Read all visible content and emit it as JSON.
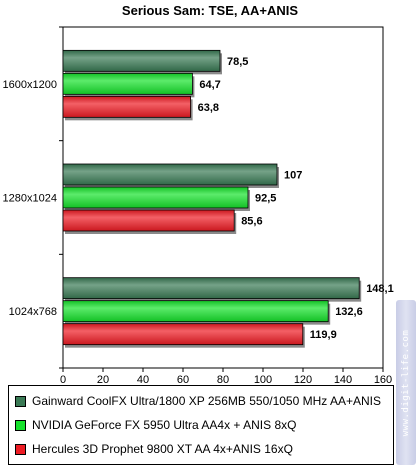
{
  "chart_data": {
    "type": "bar",
    "orientation": "horizontal",
    "title": "Serious Sam: TSE, AA+ANIS",
    "categories": [
      "1600x1200",
      "1280x1024",
      "1024x768"
    ],
    "xlim": [
      0,
      160
    ],
    "xticks": [
      "0",
      "20",
      "40",
      "60",
      "80",
      "100",
      "120",
      "140",
      "160"
    ],
    "legend_position": "bottom",
    "series": [
      {
        "name": "Gainward CoolFX Ultra/1800 XP 256MB 550/1050 MHz AA+ANIS",
        "color": "#3a7a55",
        "values": [
          78.5,
          107,
          148.1
        ],
        "labels": [
          "78,5",
          "107",
          "148,1"
        ]
      },
      {
        "name": "NVIDIA GeForce FX 5950 Ultra AA4x + ANIS 8xQ",
        "color": "#16e22c",
        "values": [
          64.7,
          92.5,
          132.6
        ],
        "labels": [
          "64,7",
          "92,5",
          "132,6"
        ]
      },
      {
        "name": "Hercules 3D Prophet 9800 XT AA 4x+ANIS 16xQ",
        "color": "#ee1c24",
        "values": [
          63.8,
          85.6,
          119.9
        ],
        "labels": [
          "63,8",
          "85,6",
          "119,9"
        ]
      }
    ]
  },
  "watermark": "www.digit-life.com"
}
